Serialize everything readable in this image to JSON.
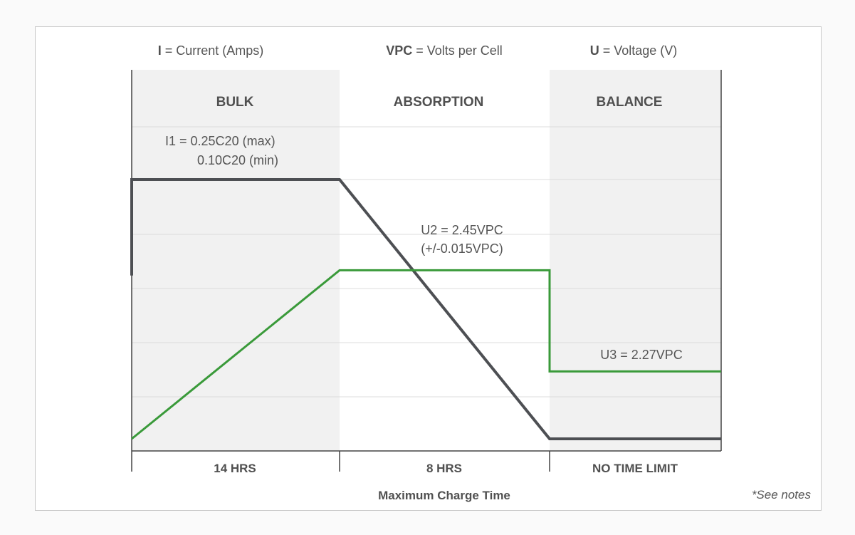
{
  "legend": [
    {
      "symbol": "I",
      "text": " = Current (Amps)"
    },
    {
      "symbol": "VPC",
      "text": " = Volts per Cell"
    },
    {
      "symbol": "U",
      "text": " = Voltage (V)"
    }
  ],
  "colors": {
    "shade": "#f1f1f1",
    "current_line": "#4d4f53",
    "voltage_line": "#3a9a3a",
    "grid": "#dcdcdc",
    "text": "#555555"
  },
  "chart_data": {
    "type": "line",
    "stages": [
      {
        "name": "BULK",
        "duration": "14 HRS",
        "shaded": true
      },
      {
        "name": "ABSORPTION",
        "duration": "8 HRS",
        "shaded": false
      },
      {
        "name": "BALANCE",
        "duration": "NO TIME LIMIT",
        "shaded": true
      }
    ],
    "series": [
      {
        "key": "current",
        "points": [
          [
            0,
            0.63
          ],
          [
            0,
            1
          ],
          [
            1,
            1
          ],
          [
            2,
            0
          ],
          [
            3,
            0
          ]
        ]
      },
      {
        "key": "voltage",
        "points": [
          [
            0,
            0
          ],
          [
            1,
            0.65
          ],
          [
            2,
            0.65
          ],
          [
            2,
            0.26
          ],
          [
            3,
            0.26
          ]
        ]
      }
    ],
    "annotations": [
      {
        "key": "i1",
        "lines": [
          "I1 = 0.25C20 (max)",
          "0.10C20 (min)"
        ]
      },
      {
        "key": "u2",
        "lines": [
          "U2 = 2.45VPC",
          "(+/-0.015VPC)"
        ]
      },
      {
        "key": "u3",
        "lines": [
          "U3 = 2.27VPC"
        ]
      }
    ],
    "xlabel": "Maximum Charge Time",
    "grid": true
  },
  "footnote": "*See notes"
}
